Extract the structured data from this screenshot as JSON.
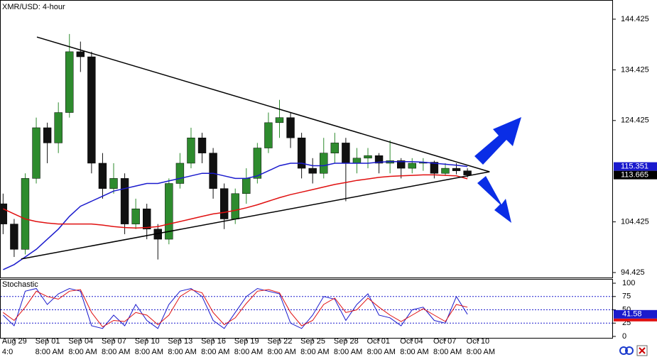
{
  "chart_data": {
    "type": "candlestick",
    "title": "XMR/USD: 4-hour",
    "xlim": [
      -0.28,
      55.1
    ],
    "xticks": [
      {
        "value": 1,
        "label": "Aug 29"
      },
      {
        "value": 4,
        "label": "Sep 01"
      },
      {
        "value": 7,
        "label": "Sep 04"
      },
      {
        "value": 10,
        "label": "Sep 07"
      },
      {
        "value": 13,
        "label": "Sep 10"
      },
      {
        "value": 16,
        "label": "Sep 13"
      },
      {
        "value": 19,
        "label": "Sep 16"
      },
      {
        "value": 22,
        "label": "Sep 19"
      },
      {
        "value": 25,
        "label": "Sep 22"
      },
      {
        "value": 28,
        "label": "Sep 25"
      },
      {
        "value": 31,
        "label": "Sep 28"
      },
      {
        "value": 34,
        "label": "Oct 01"
      },
      {
        "value": 37,
        "label": "Oct 04"
      },
      {
        "value": 40,
        "label": "Oct 07"
      },
      {
        "value": 43,
        "label": "Oct 10"
      }
    ],
    "xtick_times": [
      "4:0",
      "8:00 AM",
      "8:00 AM",
      "8:00 AM",
      "8:00 AM",
      "8:00 AM",
      "8:00 AM",
      "8:00 AM",
      "8:00 AM",
      "8:00 AM",
      "8:00 AM",
      "8:00 AM",
      "8:00 AM",
      "8:00 AM",
      "8:00 AM"
    ],
    "ylim": [
      93.305,
      148.206
    ],
    "yticks": [
      94.425,
      104.425,
      124.425,
      134.425,
      144.425
    ],
    "up_color": "#2e8b2e",
    "down_color": "#111111",
    "open": [
      108,
      104,
      99,
      113,
      123,
      120,
      126,
      138,
      137,
      116,
      111,
      113,
      104,
      107,
      103,
      101,
      112,
      116,
      121,
      118,
      111,
      105,
      110,
      113,
      119,
      124,
      125,
      121,
      115,
      114,
      118,
      120,
      116,
      117,
      117.5,
      116,
      116.5,
      115,
      116,
      116.2,
      114,
      115,
      114.5
    ],
    "high": [
      110,
      105,
      114,
      125,
      124,
      128,
      141.5,
      140,
      138,
      118,
      116,
      114,
      109,
      108,
      104,
      113,
      118,
      123,
      122,
      119,
      112,
      111,
      115,
      120,
      126,
      128.5,
      126,
      122,
      117,
      121,
      122,
      121,
      119,
      119,
      118,
      120.5,
      117,
      117,
      117,
      116.5,
      116,
      116,
      115
    ],
    "low": [
      102,
      97.5,
      98,
      112,
      116,
      118,
      125,
      134,
      114,
      109,
      110,
      102,
      103,
      101,
      97,
      100,
      111,
      115,
      116,
      109,
      103,
      104,
      108,
      112,
      118,
      121,
      119,
      113,
      112,
      113,
      116,
      108.5,
      114,
      115,
      114,
      114,
      113,
      114,
      114.5,
      113,
      113.5,
      113.8,
      113.2
    ],
    "close": [
      104,
      99,
      113,
      123,
      120,
      126,
      138,
      137,
      116,
      111,
      113,
      104,
      107,
      103,
      101,
      112,
      116,
      121,
      118,
      111,
      105,
      110,
      113,
      119,
      124,
      125,
      121,
      115,
      114,
      118,
      120,
      116,
      117,
      117.5,
      116,
      116.5,
      115,
      116,
      116.2,
      114,
      115,
      114.5,
      113.665
    ],
    "series": [
      {
        "color": "#1a1acd",
        "values": [
          95,
          96,
          97.5,
          99,
          101,
          103,
          105.5,
          107.5,
          108.5,
          109.5,
          110.5,
          111,
          111.5,
          112,
          112,
          112.5,
          113,
          113.5,
          114,
          114,
          113.5,
          113,
          113,
          113.5,
          114.5,
          115.5,
          116,
          116,
          115.5,
          115.5,
          116,
          116,
          116,
          116,
          116.2,
          116.3,
          116.3,
          116.3,
          116.2,
          116,
          115.8,
          115.6,
          115.351
        ]
      },
      {
        "color": "#e01010",
        "values": [
          107,
          106,
          105,
          104.5,
          104.2,
          104,
          104,
          104,
          104,
          103.8,
          103.5,
          103.3,
          103.2,
          103.3,
          103.5,
          104,
          104.5,
          105,
          105.5,
          106,
          106.3,
          106.7,
          107.2,
          107.8,
          108.5,
          109.2,
          109.8,
          110.3,
          110.8,
          111.3,
          111.8,
          112.2,
          112.6,
          112.9,
          113.2,
          113.4,
          113.5,
          113.6,
          113.7,
          113.7,
          113.6,
          113.5,
          112.93
        ]
      }
    ],
    "trendlines": [
      {
        "x": [
          3.06,
          44.0
        ],
        "y": [
          140.9,
          114.31
        ]
      },
      {
        "x": [
          1.64,
          44.0
        ],
        "y": [
          97.1,
          114.31
        ]
      }
    ],
    "price_labels": [
      {
        "value": 115.351,
        "color": "#1a1acd"
      },
      {
        "value": 113.665,
        "color": "#000000"
      }
    ],
    "stochastic": {
      "title": "Stochastic",
      "ylim": [
        -4,
        106.7
      ],
      "yticks": [
        0,
        25,
        50,
        75,
        100
      ],
      "levels": [
        75,
        50,
        25
      ],
      "series": [
        {
          "color": "#1a1acd",
          "values": [
            40,
            20,
            85,
            90,
            60,
            80,
            90,
            85,
            20,
            15,
            40,
            20,
            60,
            30,
            15,
            60,
            85,
            90,
            75,
            30,
            15,
            45,
            75,
            90,
            85,
            80,
            25,
            15,
            40,
            75,
            70,
            30,
            60,
            80,
            40,
            35,
            20,
            50,
            55,
            30,
            25,
            75,
            41.58
          ]
        },
        {
          "color": "#e01010",
          "values": [
            45,
            30,
            55,
            85,
            75,
            70,
            85,
            88,
            45,
            18,
            30,
            28,
            45,
            40,
            22,
            40,
            75,
            88,
            82,
            45,
            22,
            35,
            62,
            85,
            88,
            82,
            45,
            20,
            30,
            60,
            72,
            45,
            50,
            72,
            55,
            40,
            28,
            40,
            52,
            40,
            28,
            60,
            55
          ]
        }
      ],
      "current_label": 41.58
    }
  }
}
